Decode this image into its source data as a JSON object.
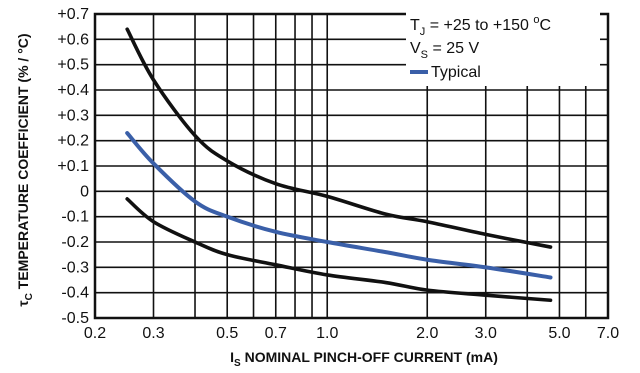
{
  "chart_data": {
    "type": "line",
    "x_scale": "log",
    "grid": true,
    "xlim": [
      0.2,
      7.0
    ],
    "ylim": [
      -0.5,
      0.7
    ],
    "x_ticks": [
      0.2,
      0.3,
      0.5,
      0.7,
      1.0,
      2.0,
      3.0,
      5.0,
      7.0
    ],
    "x_tick_labels": [
      "0.2",
      "0.3",
      "0.5",
      "0.7",
      "1.0",
      "2.0",
      "3.0",
      "5.0",
      "7.0"
    ],
    "y_ticks": [
      0.7,
      0.6,
      0.5,
      0.4,
      0.3,
      0.2,
      0.1,
      0,
      -0.1,
      -0.2,
      -0.3,
      -0.4,
      -0.5
    ],
    "y_tick_labels": [
      "+0.7",
      "+0.6",
      "+0.5",
      "+0.4",
      "+0.3",
      "+0.2",
      "+0.1",
      "0",
      "-0.1",
      "-0.2",
      "-0.3",
      "-0.4",
      "-0.5"
    ],
    "xlabel_main": "I",
    "xlabel_sub": "S",
    "xlabel_rest": " NOMINAL PINCH-OFF CURRENT (mA)",
    "ylabel_main": "τ",
    "ylabel_sub": "C",
    "ylabel_rest": " TEMPERATURE COEFFICIENT (% / °C)",
    "annotations": {
      "tj_main": "T",
      "tj_sub": "J",
      "tj_rest": " = +25 to +150 ",
      "tj_deg": "o",
      "tj_unit": "C",
      "vs_main": "V",
      "vs_sub": "S",
      "vs_rest": " = 25 V"
    },
    "legend": {
      "position": "top-right",
      "label": "Typical",
      "color": "#3a5fa8"
    },
    "series": [
      {
        "name": "",
        "color": "#111111",
        "x": [
          0.25,
          0.3,
          0.4,
          0.5,
          0.7,
          1.0,
          1.5,
          2.0,
          3.0,
          4.7
        ],
        "y": [
          0.64,
          0.44,
          0.22,
          0.12,
          0.03,
          -0.02,
          -0.09,
          -0.12,
          -0.17,
          -0.22
        ]
      },
      {
        "name": "Typical",
        "color": "#3a5fa8",
        "x": [
          0.25,
          0.3,
          0.4,
          0.5,
          0.7,
          1.0,
          1.5,
          2.0,
          3.0,
          4.7
        ],
        "y": [
          0.23,
          0.11,
          -0.04,
          -0.1,
          -0.16,
          -0.2,
          -0.24,
          -0.27,
          -0.3,
          -0.34
        ]
      },
      {
        "name": "",
        "color": "#111111",
        "x": [
          0.25,
          0.3,
          0.4,
          0.5,
          0.7,
          1.0,
          1.5,
          2.0,
          3.0,
          4.7
        ],
        "y": [
          -0.03,
          -0.12,
          -0.2,
          -0.25,
          -0.29,
          -0.33,
          -0.36,
          -0.39,
          -0.41,
          -0.43
        ]
      }
    ]
  }
}
